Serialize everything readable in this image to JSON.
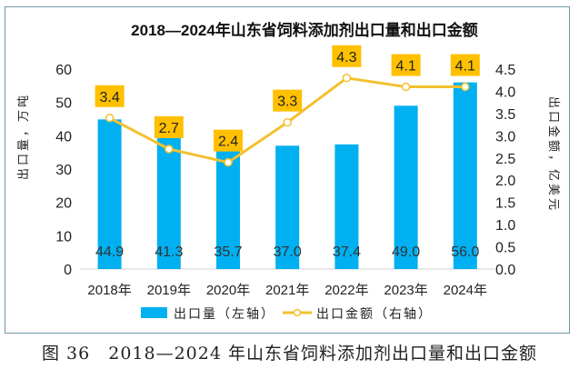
{
  "chart_data": {
    "type": "bar+line",
    "title": "2018—2024年山东省饲料添加剂出口量和出口金额",
    "categories": [
      "2018年",
      "2019年",
      "2020年",
      "2021年",
      "2022年",
      "2023年",
      "2024年"
    ],
    "series": [
      {
        "name": "出口量（左轴）",
        "type": "bar",
        "axis": "left",
        "values": [
          44.9,
          41.3,
          35.7,
          37.0,
          37.4,
          49.0,
          56.0
        ],
        "labels": [
          "44.9",
          "41.3",
          "35.7",
          "37.0",
          "37.4",
          "49.0",
          "56.0"
        ],
        "color": "#00B0F0"
      },
      {
        "name": "出口金额（右轴）",
        "type": "line",
        "axis": "right",
        "values": [
          3.4,
          2.7,
          2.4,
          3.3,
          4.3,
          4.1,
          4.1
        ],
        "labels": [
          "3.4",
          "2.7",
          "2.4",
          "3.3",
          "4.3",
          "4.1",
          "4.1"
        ],
        "color": "#F2C12E",
        "label_bg": "#FFC000"
      }
    ],
    "ylabel_left": "出口量，万吨",
    "ylabel_right": "出口金额，亿美元",
    "ylim_left": [
      0,
      60
    ],
    "ylim_right": [
      0,
      4.5
    ],
    "yticks_left": [
      "0",
      "10",
      "20",
      "30",
      "40",
      "50",
      "60"
    ],
    "yticks_right": [
      "0.0",
      "0.5",
      "1.0",
      "1.5",
      "2.0",
      "2.5",
      "3.0",
      "3.5",
      "4.0",
      "4.5"
    ],
    "grid": false,
    "legend": "bottom"
  },
  "caption": "图 36　2018—2024 年山东省饲料添加剂出口量和出口金额"
}
